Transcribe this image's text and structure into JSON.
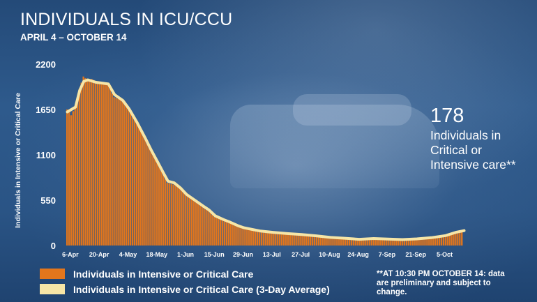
{
  "title": "INDIVIDUALS IN ICU/CCU",
  "subtitle": "APRIL 4 – OCTOBER 14",
  "callout": {
    "number": "178",
    "text": "Individuals in Critical or Intensive care**"
  },
  "note": "**AT 10:30 PM OCTOBER 14: data are preliminary and subject to change.",
  "colors": {
    "bar": "#e3761c",
    "average_line": "#f6e5a6",
    "background": "#2b5487"
  },
  "chart_data": {
    "type": "bar",
    "title": "INDIVIDUALS IN ICU/CCU",
    "xlabel": "",
    "ylabel": "Individuals in Intensive or Critical Care",
    "ylim": [
      0,
      2200
    ],
    "yticks": [
      0,
      550,
      1100,
      1650,
      2200
    ],
    "xticks": [
      "6-Apr",
      "20-Apr",
      "4-May",
      "18-May",
      "1-Jun",
      "15-Jun",
      "29-Jun",
      "13-Jul",
      "27-Jul",
      "10-Aug",
      "24-Aug",
      "7-Sep",
      "21-Sep",
      "5-Oct"
    ],
    "grid": false,
    "legend_placement": "bottom-left",
    "legend": [
      "Individuals in Intensive or Critical Care",
      "Individuals in Intensive or Critical Care (3-Day Average)"
    ],
    "series": [
      {
        "name": "Individuals in Intensive or Critical Care",
        "type": "bar",
        "date_range": [
          "4-Apr",
          "14-Oct"
        ],
        "points": [
          {
            "x": "4-Apr",
            "y": 1650
          },
          {
            "x": "6-Apr",
            "y": 1580
          },
          {
            "x": "8-Apr",
            "y": 1680
          },
          {
            "x": "10-Apr",
            "y": 1900
          },
          {
            "x": "12-Apr",
            "y": 2050
          },
          {
            "x": "14-Apr",
            "y": 2010
          },
          {
            "x": "16-Apr",
            "y": 2020
          },
          {
            "x": "20-Apr",
            "y": 1970
          },
          {
            "x": "24-Apr",
            "y": 1950
          },
          {
            "x": "27-Apr",
            "y": 1800
          },
          {
            "x": "1-May",
            "y": 1760
          },
          {
            "x": "4-May",
            "y": 1650
          },
          {
            "x": "8-May",
            "y": 1480
          },
          {
            "x": "12-May",
            "y": 1300
          },
          {
            "x": "15-May",
            "y": 1150
          },
          {
            "x": "18-May",
            "y": 1000
          },
          {
            "x": "21-May",
            "y": 860
          },
          {
            "x": "23-May",
            "y": 760
          },
          {
            "x": "26-May",
            "y": 740
          },
          {
            "x": "29-May",
            "y": 700
          },
          {
            "x": "1-Jun",
            "y": 610
          },
          {
            "x": "5-Jun",
            "y": 540
          },
          {
            "x": "9-Jun",
            "y": 470
          },
          {
            "x": "12-Jun",
            "y": 420
          },
          {
            "x": "15-Jun",
            "y": 350
          },
          {
            "x": "19-Jun",
            "y": 310
          },
          {
            "x": "22-Jun",
            "y": 280
          },
          {
            "x": "26-Jun",
            "y": 235
          },
          {
            "x": "29-Jun",
            "y": 210
          },
          {
            "x": "3-Jul",
            "y": 190
          },
          {
            "x": "7-Jul",
            "y": 170
          },
          {
            "x": "13-Jul",
            "y": 155
          },
          {
            "x": "20-Jul",
            "y": 140
          },
          {
            "x": "27-Jul",
            "y": 130
          },
          {
            "x": "3-Aug",
            "y": 115
          },
          {
            "x": "10-Aug",
            "y": 95
          },
          {
            "x": "17-Aug",
            "y": 85
          },
          {
            "x": "24-Aug",
            "y": 70
          },
          {
            "x": "31-Aug",
            "y": 85
          },
          {
            "x": "7-Sep",
            "y": 75
          },
          {
            "x": "14-Sep",
            "y": 70
          },
          {
            "x": "21-Sep",
            "y": 80
          },
          {
            "x": "28-Sep",
            "y": 95
          },
          {
            "x": "5-Oct",
            "y": 120
          },
          {
            "x": "10-Oct",
            "y": 160
          },
          {
            "x": "14-Oct",
            "y": 178
          }
        ]
      },
      {
        "name": "Individuals in Intensive or Critical Care (3-Day Average)",
        "type": "line",
        "points": [
          {
            "x": "4-Apr",
            "y": 1620
          },
          {
            "x": "8-Apr",
            "y": 1680
          },
          {
            "x": "10-Apr",
            "y": 1880
          },
          {
            "x": "12-Apr",
            "y": 1990
          },
          {
            "x": "14-Apr",
            "y": 2010
          },
          {
            "x": "18-Apr",
            "y": 1980
          },
          {
            "x": "24-Apr",
            "y": 1960
          },
          {
            "x": "27-Apr",
            "y": 1830
          },
          {
            "x": "1-May",
            "y": 1760
          },
          {
            "x": "4-May",
            "y": 1660
          },
          {
            "x": "8-May",
            "y": 1490
          },
          {
            "x": "12-May",
            "y": 1300
          },
          {
            "x": "15-May",
            "y": 1150
          },
          {
            "x": "18-May",
            "y": 1010
          },
          {
            "x": "21-May",
            "y": 870
          },
          {
            "x": "23-May",
            "y": 780
          },
          {
            "x": "26-May",
            "y": 760
          },
          {
            "x": "29-May",
            "y": 700
          },
          {
            "x": "1-Jun",
            "y": 620
          },
          {
            "x": "5-Jun",
            "y": 550
          },
          {
            "x": "9-Jun",
            "y": 480
          },
          {
            "x": "12-Jun",
            "y": 430
          },
          {
            "x": "15-Jun",
            "y": 360
          },
          {
            "x": "19-Jun",
            "y": 315
          },
          {
            "x": "22-Jun",
            "y": 285
          },
          {
            "x": "26-Jun",
            "y": 240
          },
          {
            "x": "29-Jun",
            "y": 215
          },
          {
            "x": "3-Jul",
            "y": 195
          },
          {
            "x": "7-Jul",
            "y": 175
          },
          {
            "x": "13-Jul",
            "y": 160
          },
          {
            "x": "20-Jul",
            "y": 145
          },
          {
            "x": "27-Jul",
            "y": 133
          },
          {
            "x": "3-Aug",
            "y": 118
          },
          {
            "x": "10-Aug",
            "y": 98
          },
          {
            "x": "17-Aug",
            "y": 88
          },
          {
            "x": "24-Aug",
            "y": 75
          },
          {
            "x": "31-Aug",
            "y": 85
          },
          {
            "x": "7-Sep",
            "y": 78
          },
          {
            "x": "14-Sep",
            "y": 72
          },
          {
            "x": "21-Sep",
            "y": 80
          },
          {
            "x": "28-Sep",
            "y": 95
          },
          {
            "x": "5-Oct",
            "y": 120
          },
          {
            "x": "10-Oct",
            "y": 160
          },
          {
            "x": "14-Oct",
            "y": 180
          }
        ]
      }
    ]
  }
}
